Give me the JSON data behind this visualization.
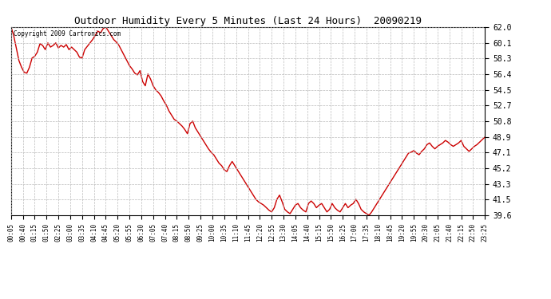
{
  "title": "Outdoor Humidity Every 5 Minutes (Last 24 Hours)  20090219",
  "copyright_text": "Copyright 2009 Cartronics.com",
  "line_color": "#cc0000",
  "bg_color": "#ffffff",
  "grid_color": "#bbbbbb",
  "yticks": [
    39.6,
    41.5,
    43.3,
    45.2,
    47.1,
    48.9,
    50.8,
    52.7,
    54.5,
    56.4,
    58.3,
    60.1,
    62.0
  ],
  "ymin": 39.6,
  "ymax": 62.0,
  "x_labels": [
    "00:05",
    "00:40",
    "01:15",
    "01:50",
    "02:25",
    "03:00",
    "03:35",
    "04:10",
    "04:45",
    "05:20",
    "05:55",
    "06:30",
    "07:05",
    "07:40",
    "08:15",
    "08:50",
    "09:25",
    "10:00",
    "10:35",
    "11:10",
    "11:45",
    "12:20",
    "12:55",
    "13:30",
    "14:05",
    "14:40",
    "15:15",
    "15:50",
    "16:25",
    "17:00",
    "17:35",
    "18:10",
    "18:45",
    "19:20",
    "19:55",
    "20:30",
    "21:05",
    "21:40",
    "22:15",
    "22:50",
    "23:25"
  ],
  "y_values": [
    62.0,
    61.0,
    59.5,
    58.0,
    57.2,
    56.6,
    56.5,
    57.2,
    58.3,
    58.5,
    59.0,
    60.0,
    59.8,
    59.3,
    60.1,
    59.6,
    59.8,
    60.1,
    59.5,
    59.8,
    59.6,
    59.9,
    59.3,
    59.6,
    59.3,
    59.0,
    58.4,
    58.3,
    59.3,
    59.7,
    60.1,
    60.5,
    61.0,
    61.5,
    61.3,
    61.8,
    62.0,
    61.5,
    61.0,
    60.5,
    60.2,
    59.8,
    59.2,
    58.6,
    58.0,
    57.4,
    57.0,
    56.5,
    56.3,
    56.8,
    55.5,
    55.0,
    56.4,
    55.8,
    55.0,
    54.5,
    54.2,
    53.8,
    53.2,
    52.7,
    52.0,
    51.5,
    51.0,
    50.8,
    50.5,
    50.2,
    49.8,
    49.3,
    50.5,
    50.8,
    50.0,
    49.5,
    49.0,
    48.5,
    48.0,
    47.5,
    47.1,
    46.8,
    46.3,
    45.8,
    45.5,
    45.0,
    44.8,
    45.5,
    46.0,
    45.5,
    45.0,
    44.5,
    44.0,
    43.5,
    43.0,
    42.5,
    42.0,
    41.5,
    41.2,
    41.0,
    40.8,
    40.5,
    40.2,
    40.0,
    40.5,
    41.5,
    42.0,
    41.2,
    40.3,
    40.0,
    39.8,
    40.3,
    40.8,
    41.0,
    40.5,
    40.2,
    40.0,
    41.0,
    41.3,
    41.0,
    40.5,
    40.8,
    41.0,
    40.5,
    40.0,
    40.3,
    41.0,
    40.5,
    40.2,
    40.0,
    40.5,
    41.0,
    40.5,
    40.8,
    41.0,
    41.5,
    41.0,
    40.3,
    40.0,
    39.8,
    39.6,
    40.0,
    40.5,
    41.0,
    41.5,
    42.0,
    42.5,
    43.0,
    43.5,
    44.0,
    44.5,
    45.0,
    45.5,
    46.0,
    46.5,
    47.0,
    47.1,
    47.3,
    47.0,
    46.8,
    47.2,
    47.5,
    48.0,
    48.2,
    47.8,
    47.5,
    47.8,
    48.0,
    48.2,
    48.5,
    48.3,
    48.0,
    47.8,
    48.0,
    48.2,
    48.5,
    47.8,
    47.5,
    47.2,
    47.5,
    47.8,
    48.0,
    48.3,
    48.6,
    48.9
  ]
}
